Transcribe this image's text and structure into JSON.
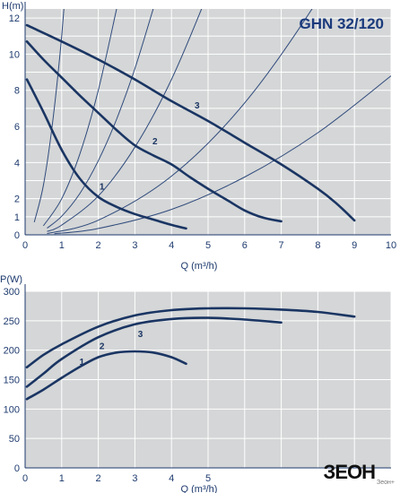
{
  "chart_data": [
    {
      "type": "line",
      "title": "GHN 32/120",
      "ylabel": "H(m)",
      "xlabel": "Q (m³/h)",
      "xlim": [
        0,
        10
      ],
      "ylim": [
        0,
        12.5
      ],
      "x_ticks": [
        0,
        1,
        2,
        3,
        4,
        5,
        6,
        7,
        8,
        9,
        10
      ],
      "y_ticks": [
        0,
        1,
        2,
        4,
        6,
        8,
        10,
        12
      ],
      "grid": true,
      "series": [
        {
          "name": "1",
          "label_at": [
            2.1,
            2.5
          ],
          "x": [
            0.05,
            0.5,
            1.0,
            1.5,
            2.0,
            2.5,
            3.0,
            3.5,
            4.0,
            4.4
          ],
          "y": [
            8.6,
            6.8,
            4.7,
            3.1,
            2.1,
            1.55,
            1.15,
            0.85,
            0.55,
            0.35
          ]
        },
        {
          "name": "2",
          "label_at": [
            3.55,
            5.0
          ],
          "x": [
            0.05,
            0.5,
            1.0,
            1.5,
            2.0,
            2.5,
            3.0,
            3.5,
            4.0,
            4.5,
            5.0,
            5.5,
            6.0,
            6.5,
            7.0
          ],
          "y": [
            10.7,
            9.7,
            8.7,
            7.7,
            6.75,
            5.8,
            4.95,
            4.4,
            3.9,
            3.2,
            2.55,
            1.95,
            1.35,
            0.95,
            0.75
          ]
        },
        {
          "name": "3",
          "label_at": [
            4.7,
            7.0
          ],
          "x": [
            0.05,
            1.0,
            2.0,
            3.0,
            4.0,
            5.0,
            6.0,
            7.0,
            8.0,
            8.5,
            9.0
          ],
          "y": [
            11.6,
            10.7,
            9.7,
            8.6,
            7.4,
            6.3,
            5.1,
            3.9,
            2.55,
            1.75,
            0.8
          ]
        }
      ],
      "system_curves": [
        {
          "x": [
            0.25,
            0.5,
            0.75,
            1.0,
            1.25,
            1.5
          ],
          "y": [
            0.7,
            2.75,
            6.2,
            11.0,
            17.2,
            24.7
          ]
        },
        {
          "x": [
            0.5,
            1.0,
            1.5,
            2.0,
            2.5
          ],
          "y": [
            0.5,
            2.0,
            4.5,
            8.0,
            12.5
          ]
        },
        {
          "x": [
            0.6,
            1.0,
            1.5,
            2.0,
            2.5,
            3.0,
            3.5
          ],
          "y": [
            0.37,
            1.03,
            2.3,
            4.1,
            6.4,
            9.2,
            12.5
          ]
        },
        {
          "x": [
            0.6,
            1.0,
            2.0,
            3.0,
            4.0,
            5.0,
            5.3
          ],
          "y": [
            0.19,
            0.54,
            2.15,
            4.85,
            8.6,
            13.4,
            15.1
          ]
        },
        {
          "x": [
            0.6,
            2.0,
            4.0,
            6.0,
            8.0,
            9.5
          ],
          "y": [
            0.07,
            0.81,
            3.25,
            7.3,
            13.0,
            18.3
          ]
        },
        {
          "x": [
            0.8,
            2.0,
            4.0,
            6.0,
            8.0,
            10.0
          ],
          "y": [
            0.06,
            0.35,
            1.41,
            3.2,
            5.65,
            8.8
          ]
        }
      ]
    },
    {
      "type": "line",
      "ylabel": "P(W)",
      "xlabel": "Q (m³/h)",
      "xlim": [
        0,
        10
      ],
      "ylim": [
        0,
        300
      ],
      "x_ticks": [
        0,
        1,
        2,
        3,
        4,
        5
      ],
      "y_ticks": [
        0,
        50,
        100,
        150,
        200,
        250,
        300
      ],
      "grid": true,
      "series": [
        {
          "name": "1",
          "label_at": [
            1.55,
            175
          ],
          "x": [
            0.05,
            0.5,
            1.0,
            1.5,
            2.0,
            2.5,
            3.0,
            3.5,
            4.0,
            4.4
          ],
          "y": [
            117,
            133,
            153,
            172,
            188,
            196,
            198,
            196,
            188,
            177
          ]
        },
        {
          "name": "2",
          "label_at": [
            2.1,
            202
          ],
          "x": [
            0.05,
            0.5,
            1.0,
            2.0,
            3.0,
            4.0,
            5.0,
            6.0,
            7.0
          ],
          "y": [
            138,
            160,
            185,
            222,
            244,
            253,
            255,
            252,
            247
          ]
        },
        {
          "name": "3",
          "label_at": [
            3.15,
            222
          ],
          "x": [
            0.05,
            0.5,
            1.0,
            2.0,
            3.0,
            4.0,
            5.0,
            6.0,
            7.0,
            8.0,
            9.0
          ],
          "y": [
            171,
            192,
            210,
            240,
            259,
            268,
            271,
            271,
            269,
            265,
            257
          ]
        }
      ]
    }
  ],
  "labels": {
    "logo_text": "ЗЕОН",
    "logo_subtext": "Зеон+"
  },
  "colors": {
    "plot_bg": "#d4d6d7",
    "grid": "#ffffff",
    "axis": "#1d3a6e",
    "pump_curve": "#1a3563",
    "system_curve": "#2f4a7c",
    "title": "#1a3a7c"
  }
}
